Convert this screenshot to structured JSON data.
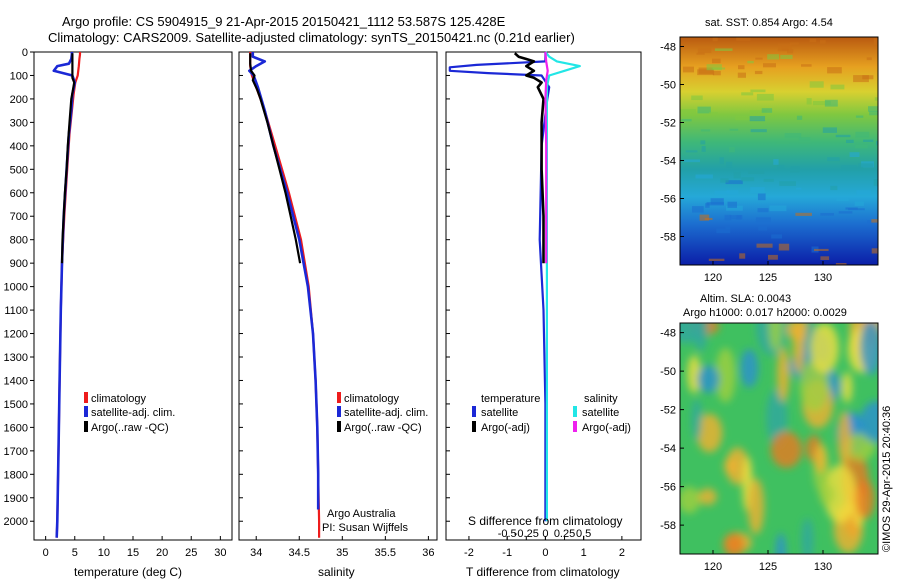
{
  "header": {
    "line1": "Argo profile: CS 5904915_9 21-Apr-2015 20150421_1112 53.587S 125.428E",
    "line2": "Climatology: CARS2009. Satellite-adjusted climatology: synTS_20150421.nc (0.21d earlier)"
  },
  "chart_data": [
    {
      "type": "line",
      "name": "temperature-profile",
      "xlabel": "temperature (deg C)",
      "xlim": [
        -2,
        32
      ],
      "xticks": [
        0,
        5,
        10,
        15,
        20,
        25,
        30
      ],
      "ylim": [
        0,
        2080
      ],
      "yticks": [
        0,
        100,
        200,
        300,
        400,
        500,
        600,
        700,
        800,
        900,
        1000,
        1100,
        1200,
        1300,
        1400,
        1500,
        1600,
        1700,
        1800,
        1900,
        2000
      ],
      "legend": [
        "climatology",
        "satellite-adj. clim.",
        "Argo(..raw -QC)"
      ],
      "series": [
        {
          "name": "climatology",
          "color": "#ee1c1c",
          "depth": [
            0,
            10,
            30,
            60,
            100,
            130,
            180,
            250,
            350,
            500,
            700,
            900,
            1100,
            1400,
            1700,
            2000,
            2070
          ],
          "value": [
            5.9,
            5.9,
            5.8,
            5.7,
            5.5,
            5.1,
            4.8,
            4.5,
            4.1,
            3.7,
            3.2,
            2.8,
            2.6,
            2.4,
            2.2,
            2.0,
            1.9
          ]
        },
        {
          "name": "satellite-adj. clim.",
          "color": "#1b28d6",
          "depth": [
            0,
            10,
            30,
            50,
            60,
            80,
            100,
            130,
            180,
            250,
            350,
            500,
            700,
            900,
            1100,
            1400,
            1700,
            2000,
            2070
          ],
          "value": [
            4.5,
            4.5,
            4.4,
            4.0,
            2.0,
            1.4,
            4.6,
            5.0,
            4.6,
            4.4,
            4.0,
            3.6,
            3.1,
            2.8,
            2.6,
            2.4,
            2.2,
            2.0,
            1.9
          ]
        },
        {
          "name": "Argo(..raw -QC)",
          "color": "#000000",
          "depth": [
            5,
            40,
            80,
            110,
            130,
            160,
            200,
            300,
            400,
            500,
            600,
            700,
            800,
            900
          ],
          "value": [
            4.6,
            4.6,
            4.6,
            4.6,
            4.9,
            4.7,
            4.4,
            4.1,
            3.8,
            3.6,
            3.3,
            3.1,
            2.9,
            2.8
          ]
        }
      ]
    },
    {
      "type": "line",
      "name": "salinity-profile",
      "xlabel": "salinity",
      "xlim": [
        33.8,
        36.1
      ],
      "xticks": [
        34,
        34.5,
        35,
        35.5,
        36
      ],
      "ylim": [
        0,
        2080
      ],
      "legend": [
        "climatology",
        "satellite-adj. clim.",
        "Argo(..raw -QC)"
      ],
      "annotation": [
        "Argo Australia",
        "PI: Susan Wijffels"
      ],
      "series": [
        {
          "name": "climatology",
          "color": "#ee1c1c",
          "depth": [
            0,
            60,
            100,
            150,
            250,
            400,
            600,
            800,
            1000,
            1200,
            1400,
            1600,
            1800,
            2000,
            2070
          ],
          "value": [
            33.93,
            33.93,
            33.95,
            34.0,
            34.1,
            34.22,
            34.38,
            34.52,
            34.61,
            34.66,
            34.69,
            34.71,
            34.72,
            34.73,
            34.73
          ]
        },
        {
          "name": "satellite-adj. clim.",
          "color": "#1b28d6",
          "depth": [
            0,
            20,
            40,
            60,
            80,
            100,
            150,
            250,
            400,
            600,
            800,
            1000,
            1200,
            1400,
            1600,
            1800,
            1950
          ],
          "value": [
            33.96,
            33.96,
            34.1,
            34.0,
            33.92,
            33.97,
            34.02,
            34.1,
            34.2,
            34.36,
            34.5,
            34.6,
            34.66,
            34.69,
            34.71,
            34.72,
            34.72
          ]
        },
        {
          "name": "Argo(..raw -QC)",
          "color": "#000000",
          "depth": [
            5,
            50,
            80,
            100,
            120,
            160,
            200,
            300,
            400,
            500,
            600,
            700,
            800,
            900
          ],
          "value": [
            33.93,
            33.93,
            33.94,
            33.98,
            33.96,
            34.01,
            34.05,
            34.13,
            34.2,
            34.27,
            34.34,
            34.4,
            34.46,
            34.51
          ]
        }
      ]
    },
    {
      "type": "line",
      "name": "difference-profile",
      "xlabel": "T difference from climatology",
      "xlabel_top": "S difference from climatology",
      "xlim": [
        -2.6,
        2.5
      ],
      "xticks_T": [
        -2,
        -1,
        0,
        1,
        2
      ],
      "xticks_S": [
        -0.5,
        -0.25,
        0,
        0.25,
        0.5
      ],
      "ylim": [
        0,
        2080
      ],
      "legend_titles": [
        "temperature",
        "salinity"
      ],
      "legend": [
        "satellite",
        "Argo(-adj)",
        "satellite",
        "Argo(-adj)"
      ],
      "series": [
        {
          "name": "T satellite",
          "color": "#1b28d6",
          "depth": [
            0,
            40,
            55,
            65,
            80,
            90,
            100,
            150,
            200,
            400,
            800,
            1100,
            1500,
            2000
          ],
          "value": [
            0.0,
            0.0,
            -1.8,
            -2.5,
            -2.5,
            -1.5,
            -0.1,
            0.1,
            0.05,
            -0.1,
            -0.15,
            -0.05,
            0.0,
            0.0
          ]
        },
        {
          "name": "T Argo(-adj)",
          "color": "#000000",
          "depth": [
            5,
            20,
            30,
            40,
            60,
            80,
            100,
            110,
            130,
            150,
            200,
            300,
            500,
            700,
            900
          ],
          "value": [
            -0.8,
            -0.7,
            -0.5,
            -0.3,
            -0.5,
            -0.3,
            -0.5,
            -0.3,
            -0.1,
            -0.2,
            -0.05,
            -0.1,
            -0.1,
            -0.05,
            -0.05
          ]
        },
        {
          "name": "S satellite",
          "color": "#22e6e6",
          "depth": [
            0,
            20,
            40,
            60,
            80,
            100,
            150,
            300,
            600,
            1000,
            1500,
            2000
          ],
          "value": [
            0.0,
            0.05,
            0.15,
            0.45,
            0.25,
            0.05,
            0.02,
            0.02,
            0.02,
            0.02,
            0.02,
            0.02
          ]
        },
        {
          "name": "S Argo(-adj)",
          "color": "#ee22ee",
          "depth": [
            0,
            40,
            80,
            120,
            200,
            400,
            600,
            800,
            900
          ],
          "value": [
            0.0,
            0.01,
            0.03,
            0.01,
            0.0,
            0.01,
            0.01,
            0.01,
            0.01
          ]
        }
      ]
    },
    {
      "type": "heatmap",
      "name": "sst-map",
      "title": "sat. SST: 0.854  Argo: 4.54",
      "xticks": [
        120,
        125,
        130
      ],
      "yticks": [
        -48,
        -50,
        -52,
        -54,
        -56,
        -58
      ],
      "xlim": [
        117,
        135
      ],
      "ylim": [
        -59.5,
        -47.5
      ]
    },
    {
      "type": "heatmap",
      "name": "sla-map",
      "title": "Altim. SLA: 0.0043",
      "subtitle": "Argo h1000: 0.017 h2000: 0.0029",
      "xticks": [
        120,
        125,
        130
      ],
      "yticks": [
        -48,
        -50,
        -52,
        -54,
        -56,
        -58
      ],
      "xlim": [
        117,
        135
      ],
      "ylim": [
        -59.5,
        -47.5
      ]
    }
  ],
  "footer": {
    "credit": "©IMOS 29-Apr-2015 20:40:36"
  }
}
